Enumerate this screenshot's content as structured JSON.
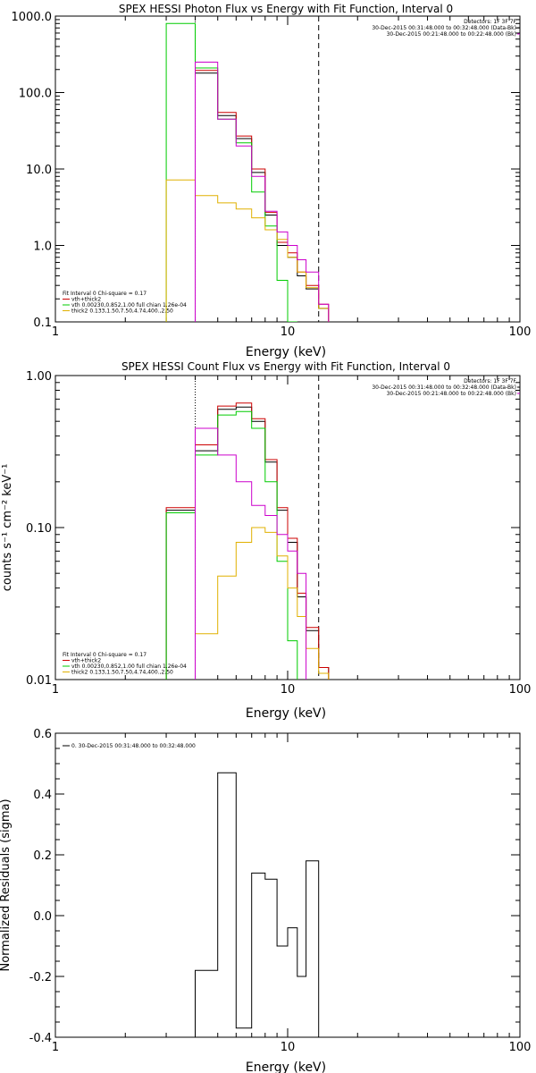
{
  "chart_data": [
    {
      "type": "line",
      "title": "SPEX HESSI Photon Flux vs Energy with Fit Function, Interval 0",
      "xlabel": "Energy (keV)",
      "ylabel": "",
      "xscale": "log",
      "yscale": "log",
      "xlim": [
        1,
        100
      ],
      "ylim": [
        0.1,
        1000
      ],
      "x_ticks": [
        1,
        10,
        100
      ],
      "x_tick_labels": [
        "1",
        "10",
        "100"
      ],
      "y_ticks": [
        0.1,
        1,
        10,
        100,
        1000
      ],
      "y_tick_labels": [
        "0.1",
        "1.0",
        "10.0",
        "100.0",
        "1000.0"
      ],
      "header_lines": [
        "Detectors: 1F 3F 7F",
        "30-Dec-2015 00:31:48.000 to 00:32:48.000 (Data-Bk)",
        "30-Dec-2015 00:21:48.000 to 00:22:48.000 (Bk)"
      ],
      "legend_lines": [
        "Fit Interval 0   Chi-square = 0.17",
        "vth+thick2",
        "vth 0.00230,0.852,1.00  full chian 1.26e-04",
        "thick2 0.133,1.50,7.50,4.74,400.,2.50"
      ],
      "vlines": [
        4.0,
        13.6
      ],
      "bin_edges": [
        3.0,
        4.0,
        5.0,
        6.0,
        7.0,
        8.0,
        9.0,
        10.0,
        11.0,
        12.0,
        13.6,
        15.0
      ],
      "series": [
        {
          "color": "#000000",
          "values": [
            null,
            180,
            50,
            25,
            9,
            2.5,
            1.0,
            0.7,
            0.4,
            0.27,
            0.15
          ]
        },
        {
          "color": "#cc0000",
          "values": [
            null,
            195,
            55,
            27,
            10,
            2.7,
            1.1,
            0.8,
            0.45,
            0.3,
            0.17
          ]
        },
        {
          "color": "#00cc00",
          "values": [
            800,
            210,
            45,
            22,
            5,
            1.8,
            0.35,
            0.1,
            null,
            null,
            null
          ]
        },
        {
          "color": "#e0b000",
          "values": [
            7.2,
            4.5,
            3.6,
            3.0,
            2.3,
            1.6,
            1.2,
            0.7,
            0.45,
            0.28,
            0.15,
            0.1
          ]
        },
        {
          "color": "#cc00cc",
          "values": [
            null,
            250,
            45,
            20,
            8,
            2.8,
            1.5,
            1.0,
            0.65,
            0.45,
            0.17
          ]
        }
      ]
    },
    {
      "type": "line",
      "title": "SPEX HESSI Count Flux vs Energy with Fit Function, Interval 0",
      "xlabel": "Energy (keV)",
      "ylabel": "counts s⁻¹ cm⁻² keV⁻¹",
      "xscale": "log",
      "yscale": "log",
      "xlim": [
        1,
        100
      ],
      "ylim": [
        0.01,
        1.0
      ],
      "x_ticks": [
        1,
        10,
        100
      ],
      "x_tick_labels": [
        "1",
        "10",
        "100"
      ],
      "y_ticks": [
        0.01,
        0.1,
        1.0
      ],
      "y_tick_labels": [
        "0.01",
        "0.10",
        "1.00"
      ],
      "header_lines": [
        "Detectors: 1F 3F 7F",
        "30-Dec-2015 00:31:48.000 to 00:32:48.000 (Data-Bk)",
        "30-Dec-2015 00:21:48.000 to 00:22:48.000 (Bk)"
      ],
      "legend_lines": [
        "Fit Interval 0   Chi-square = 0.17",
        "vth+thick2",
        "vth 0.00230,0.852,1.00  full chian 1.26e-04",
        "thick2 0.133,1.50,7.50,4.74,400.,2.50"
      ],
      "vlines": [
        4.0,
        13.6
      ],
      "bin_edges": [
        3.0,
        4.0,
        5.0,
        6.0,
        7.0,
        8.0,
        9.0,
        10.0,
        11.0,
        12.0,
        13.6,
        15.0
      ],
      "series": [
        {
          "color": "#000000",
          "values": [
            0.13,
            0.32,
            0.6,
            0.62,
            0.5,
            0.27,
            0.13,
            0.08,
            0.035,
            0.021,
            0.012
          ]
        },
        {
          "color": "#cc0000",
          "values": [
            0.135,
            0.35,
            0.63,
            0.66,
            0.52,
            0.28,
            0.135,
            0.085,
            0.037,
            0.022,
            0.012
          ]
        },
        {
          "color": "#00cc00",
          "values": [
            0.125,
            0.3,
            0.55,
            0.58,
            0.45,
            0.2,
            0.06,
            0.018,
            null,
            null,
            null
          ]
        },
        {
          "color": "#e0b000",
          "values": [
            null,
            0.02,
            0.048,
            0.08,
            0.1,
            0.093,
            0.065,
            0.04,
            0.026,
            0.016,
            0.011
          ]
        },
        {
          "color": "#cc00cc",
          "values": [
            null,
            0.45,
            0.3,
            0.2,
            0.14,
            0.12,
            0.09,
            0.07,
            0.05,
            null,
            null
          ]
        }
      ]
    },
    {
      "type": "line",
      "title": "",
      "xlabel": "Energy (keV)",
      "ylabel": "Normalized Residuals (sigma)",
      "xscale": "log",
      "yscale": "linear",
      "xlim": [
        1,
        100
      ],
      "ylim": [
        -0.4,
        0.6
      ],
      "x_ticks": [
        1,
        10,
        100
      ],
      "x_tick_labels": [
        "1",
        "10",
        "100"
      ],
      "y_ticks": [
        -0.4,
        -0.2,
        0.0,
        0.2,
        0.4,
        0.6
      ],
      "y_tick_labels": [
        "-0.4",
        "-0.2",
        "0.0",
        "0.2",
        "0.4",
        "0.6"
      ],
      "legend_lines": [
        "0. 30-Dec-2015 00:31:48.000 to 00:32:48.000"
      ],
      "bin_edges": [
        4.0,
        5.0,
        6.0,
        7.0,
        8.0,
        9.0,
        10.0,
        11.0,
        12.0,
        13.6
      ],
      "series": [
        {
          "color": "#000000",
          "values": [
            -0.18,
            0.47,
            -0.37,
            0.14,
            0.12,
            -0.1,
            -0.04,
            -0.2,
            0.18
          ]
        }
      ]
    }
  ]
}
